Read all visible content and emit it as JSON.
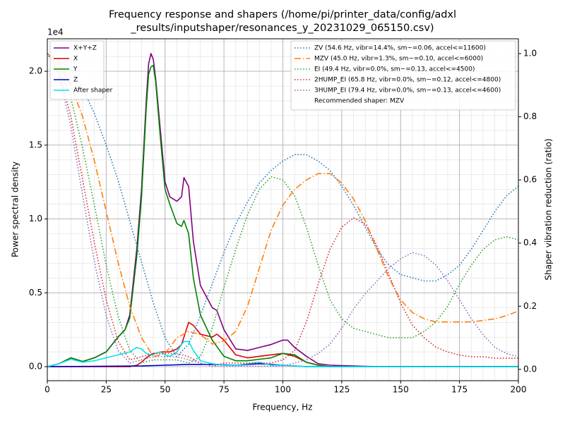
{
  "chart_data": {
    "type": "line",
    "title": [
      "Frequency response and shapers (/home/pi/printer_data/config/adxl",
      "_results/inputshaper/resonances_y_20231029_065150.csv)"
    ],
    "xlabel": "Frequency, Hz",
    "ylabel": "Power spectral density",
    "y2label": "Shaper vibration reduction (ratio)",
    "y_offset": "1e4",
    "xlim": [
      0,
      200
    ],
    "ylim": [
      -950,
      22200
    ],
    "y2lim": [
      -0.036,
      1.047
    ],
    "xticks": [
      0,
      25,
      50,
      75,
      100,
      125,
      150,
      175,
      200
    ],
    "yticks": [
      {
        "value": 0,
        "label": "0.0"
      },
      {
        "value": 5000,
        "label": "0.5"
      },
      {
        "value": 10000,
        "label": "1.0"
      },
      {
        "value": 15000,
        "label": "1.5"
      },
      {
        "value": 20000,
        "label": "2.0"
      }
    ],
    "y2ticks": [
      {
        "value": 0,
        "label": "0.0"
      },
      0.2,
      0.4,
      0.6,
      0.8,
      {
        "value": 1,
        "label": "1.0"
      }
    ],
    "grid": true,
    "minor_grid": {
      "x": 5,
      "y": 1000
    },
    "legend": "upper left",
    "legend2": "upper right",
    "recommended": "Recommended shaper: MZV",
    "series": [
      {
        "name": "X+Y+Z",
        "color": "#800080",
        "linestyle": "solid",
        "x": [
          0,
          5,
          10,
          15,
          20,
          25,
          30,
          33,
          35,
          38,
          40,
          42,
          43,
          44,
          45,
          46,
          48,
          50,
          52,
          55,
          57,
          58,
          60,
          62,
          65,
          70,
          72,
          75,
          80,
          85,
          90,
          95,
          100,
          102,
          105,
          110,
          115,
          120,
          130,
          140,
          200
        ],
        "values": [
          0,
          200,
          600,
          350,
          600,
          1000,
          2000,
          2500,
          3500,
          8000,
          12000,
          18000,
          20500,
          21200,
          20800,
          19500,
          16000,
          12500,
          11500,
          11200,
          11500,
          12800,
          12200,
          8500,
          5500,
          4000,
          3800,
          2500,
          1200,
          1100,
          1300,
          1500,
          1800,
          1800,
          1300,
          700,
          200,
          100,
          50,
          0,
          0
        ]
      },
      {
        "name": "X",
        "color": "#dd0000",
        "linestyle": "solid",
        "x": [
          0,
          35,
          38,
          40,
          42,
          44,
          45,
          46,
          48,
          50,
          52,
          55,
          57,
          58,
          60,
          62,
          65,
          70,
          72,
          75,
          80,
          85,
          90,
          95,
          100,
          105,
          110,
          115,
          120,
          200
        ],
        "values": [
          0,
          0,
          100,
          300,
          600,
          800,
          900,
          900,
          1000,
          1000,
          1000,
          1200,
          1500,
          2000,
          3000,
          2800,
          2200,
          2000,
          2200,
          1800,
          800,
          600,
          700,
          800,
          900,
          700,
          300,
          100,
          0,
          0
        ]
      },
      {
        "name": "Y",
        "color": "#008000",
        "linestyle": "solid",
        "x": [
          0,
          5,
          10,
          15,
          20,
          25,
          30,
          33,
          35,
          38,
          40,
          42,
          43,
          44,
          45,
          46,
          48,
          50,
          52,
          55,
          57,
          58,
          60,
          62,
          65,
          70,
          75,
          80,
          85,
          90,
          95,
          100,
          105,
          110,
          115,
          120,
          200
        ],
        "values": [
          0,
          200,
          600,
          350,
          600,
          1000,
          2000,
          2500,
          3300,
          7500,
          11500,
          17500,
          19800,
          20300,
          20400,
          19300,
          15500,
          12000,
          11000,
          9700,
          9500,
          9900,
          9000,
          6000,
          3500,
          1800,
          700,
          400,
          400,
          500,
          600,
          900,
          800,
          300,
          100,
          0,
          0
        ]
      },
      {
        "name": "Z",
        "color": "#0000cc",
        "linestyle": "solid",
        "x": [
          0,
          40,
          50,
          60,
          70,
          80,
          90,
          100,
          110,
          200
        ],
        "values": [
          0,
          50,
          100,
          150,
          150,
          100,
          200,
          100,
          0,
          0
        ]
      },
      {
        "name": "After shaper",
        "color": "#00e5ee",
        "linestyle": "solid",
        "x": [
          0,
          5,
          10,
          15,
          20,
          25,
          30,
          35,
          38,
          40,
          42,
          44,
          45,
          46,
          48,
          50,
          52,
          55,
          57,
          58,
          60,
          62,
          65,
          70,
          75,
          80,
          85,
          90,
          95,
          100,
          110,
          200
        ],
        "values": [
          0,
          200,
          500,
          300,
          400,
          600,
          800,
          1000,
          1300,
          1200,
          900,
          800,
          800,
          900,
          1000,
          800,
          700,
          1000,
          1500,
          1700,
          1700,
          1100,
          400,
          200,
          100,
          100,
          200,
          300,
          100,
          100,
          0,
          0
        ]
      },
      {
        "name": "ZV (54.6 Hz, vibr=14.4%, sm~=0.06, accel<=11600)",
        "color": "#1f77b4",
        "linestyle": "dotted",
        "axis": "y2",
        "x": [
          0,
          5,
          10,
          15,
          20,
          25,
          30,
          35,
          40,
          45,
          50,
          55,
          60,
          65,
          70,
          75,
          80,
          85,
          90,
          95,
          100,
          105,
          110,
          115,
          120,
          125,
          130,
          135,
          140,
          145,
          150,
          155,
          160,
          165,
          170,
          175,
          180,
          185,
          190,
          195,
          200
        ],
        "values": [
          1.0,
          0.98,
          0.95,
          0.89,
          0.81,
          0.71,
          0.6,
          0.47,
          0.34,
          0.21,
          0.1,
          0.04,
          0.08,
          0.17,
          0.27,
          0.37,
          0.46,
          0.53,
          0.59,
          0.63,
          0.66,
          0.68,
          0.68,
          0.66,
          0.63,
          0.58,
          0.52,
          0.45,
          0.38,
          0.33,
          0.3,
          0.29,
          0.28,
          0.28,
          0.3,
          0.33,
          0.38,
          0.44,
          0.5,
          0.55,
          0.58
        ]
      },
      {
        "name": "MZV (45.0 Hz, vibr=1.3%, sm~=0.10, accel<=6000)",
        "color": "#ff7f0e",
        "linestyle": "dashdot",
        "axis": "y2",
        "x": [
          0,
          5,
          10,
          15,
          20,
          25,
          30,
          35,
          40,
          45,
          50,
          55,
          60,
          65,
          70,
          75,
          80,
          85,
          90,
          95,
          100,
          105,
          110,
          115,
          120,
          125,
          130,
          135,
          140,
          145,
          150,
          155,
          160,
          165,
          170,
          175,
          180,
          185,
          190,
          195,
          200
        ],
        "values": [
          1.0,
          0.97,
          0.9,
          0.8,
          0.66,
          0.5,
          0.34,
          0.2,
          0.1,
          0.04,
          0.05,
          0.1,
          0.12,
          0.11,
          0.08,
          0.09,
          0.12,
          0.2,
          0.32,
          0.44,
          0.52,
          0.57,
          0.6,
          0.62,
          0.62,
          0.59,
          0.54,
          0.47,
          0.38,
          0.29,
          0.22,
          0.18,
          0.16,
          0.15,
          0.15,
          0.15,
          0.15,
          0.155,
          0.16,
          0.17,
          0.185
        ]
      },
      {
        "name": "EI (49.4 Hz, vibr=0.0%, sm~=0.13, accel<=4500)",
        "color": "#2ca02c",
        "linestyle": "dotted",
        "axis": "y2",
        "x": [
          0,
          5,
          10,
          15,
          20,
          25,
          30,
          35,
          40,
          45,
          50,
          55,
          60,
          65,
          70,
          75,
          80,
          85,
          90,
          95,
          100,
          105,
          110,
          115,
          120,
          125,
          130,
          135,
          140,
          145,
          150,
          155,
          160,
          165,
          170,
          175,
          180,
          185,
          190,
          195,
          200
        ],
        "values": [
          1.0,
          0.96,
          0.86,
          0.7,
          0.52,
          0.33,
          0.17,
          0.06,
          0.02,
          0.03,
          0.03,
          0.03,
          0.02,
          0.04,
          0.13,
          0.26,
          0.38,
          0.49,
          0.57,
          0.61,
          0.6,
          0.55,
          0.45,
          0.33,
          0.22,
          0.16,
          0.13,
          0.12,
          0.11,
          0.1,
          0.1,
          0.1,
          0.12,
          0.15,
          0.2,
          0.27,
          0.33,
          0.38,
          0.41,
          0.42,
          0.41
        ]
      },
      {
        "name": "2HUMP_EI (65.8 Hz, vibr=0.0%, sm~=0.12, accel<=4800)",
        "color": "#d62728",
        "linestyle": "dotted",
        "axis": "y2",
        "x": [
          0,
          5,
          10,
          15,
          20,
          25,
          30,
          35,
          40,
          45,
          50,
          55,
          60,
          65,
          70,
          75,
          80,
          85,
          90,
          95,
          100,
          105,
          110,
          115,
          120,
          125,
          130,
          135,
          140,
          145,
          150,
          155,
          160,
          165,
          170,
          175,
          180,
          185,
          190,
          195,
          200
        ],
        "values": [
          1.0,
          0.94,
          0.8,
          0.6,
          0.4,
          0.22,
          0.09,
          0.03,
          0.04,
          0.05,
          0.05,
          0.05,
          0.04,
          0.02,
          0.01,
          0.02,
          0.02,
          0.02,
          0.02,
          0.02,
          0.03,
          0.06,
          0.15,
          0.27,
          0.38,
          0.45,
          0.48,
          0.46,
          0.39,
          0.3,
          0.21,
          0.14,
          0.1,
          0.07,
          0.055,
          0.045,
          0.04,
          0.04,
          0.035,
          0.035,
          0.035
        ]
      },
      {
        "name": "3HUMP_EI (79.4 Hz, vibr=0.0%, sm~=0.13, accel<=4600)",
        "color": "#9467bd",
        "linestyle": "dotted",
        "axis": "y2",
        "x": [
          0,
          5,
          10,
          15,
          20,
          25,
          30,
          35,
          40,
          45,
          50,
          55,
          60,
          65,
          70,
          75,
          80,
          85,
          90,
          95,
          100,
          105,
          110,
          115,
          120,
          125,
          130,
          135,
          140,
          145,
          150,
          155,
          160,
          165,
          170,
          175,
          180,
          185,
          190,
          195,
          200
        ],
        "values": [
          1.0,
          0.93,
          0.77,
          0.55,
          0.34,
          0.17,
          0.06,
          0.02,
          0.03,
          0.04,
          0.04,
          0.04,
          0.03,
          0.02,
          0.01,
          0.01,
          0.01,
          0.01,
          0.01,
          0.01,
          0.01,
          0.02,
          0.03,
          0.05,
          0.08,
          0.13,
          0.19,
          0.24,
          0.28,
          0.32,
          0.35,
          0.37,
          0.36,
          0.33,
          0.28,
          0.22,
          0.16,
          0.11,
          0.07,
          0.05,
          0.04
        ]
      }
    ]
  }
}
